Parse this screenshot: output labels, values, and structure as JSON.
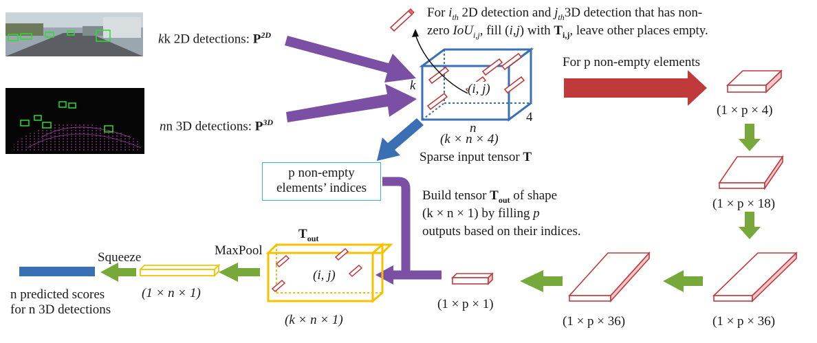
{
  "colors": {
    "purple": "#7b4fa3",
    "red": "#c0393b",
    "blue": "#3a6fb4",
    "green": "#76a93a",
    "yellow": "#f5c200",
    "cyan": "#3fb0cc",
    "pink": "#e06d74"
  },
  "inputs": {
    "camera_image": "camera-image-thumbnail",
    "lidar_image": "lidar-pointcloud-thumbnail",
    "k_2d_label": "k 2D detections: ",
    "p2d_symbol": "P",
    "p2d_sup": "2D",
    "n_3d_label": "n 3D detections: ",
    "p3d_symbol": "P",
    "p3d_sup": "3D"
  },
  "note": {
    "line1_a": "For ",
    "line1_ith": "i",
    "line1_th": "th",
    "line1_b": " 2D detection and ",
    "line1_jth": "j",
    "line1_c": "3D detection that has non-",
    "line2_a": "zero ",
    "line2_iou": "IoU",
    "line2_sub": "i,j",
    "line2_b": ", fill (",
    "line2_ij": "i,j",
    "line2_c": ") with ",
    "line2_T": "T",
    "line2_Tsub": "i,j",
    "line2_d": ", leave other places empty."
  },
  "sparse_tensor": {
    "k": "k",
    "n": "n",
    "four": "4",
    "ij": "(i, j)",
    "shape": "(k × n × 4)",
    "caption": "Sparse input tensor ",
    "caption_T": "T"
  },
  "mlp": {
    "for_p_label": "For p non-empty elements",
    "s1": "(1 × p × 4)",
    "s2": "(1 × p × 18)",
    "s3": "(1 × p × 36)",
    "s4": "(1 × p × 36)",
    "s5": "(1 × p × 1)"
  },
  "indices": {
    "label_line1": "p non-empty",
    "label_line2": "elements’ indices"
  },
  "build": {
    "l1_a": "Build tensor ",
    "l1_T": "T",
    "l1_Tsub": "out",
    "l1_b": " of shape",
    "l2_a": "(k × n × 1)  by  filling  ",
    "l2_p": "p",
    "l3": "outputs based on their indices."
  },
  "tout": {
    "title_T": "T",
    "title_sub": "out",
    "ij": "(i, j)",
    "shape": "(k × n × 1)"
  },
  "pool": {
    "maxpool": "MaxPool",
    "squeeze": "Squeeze",
    "shape": "(1 × n × 1)",
    "scores_l1": "n predicted scores",
    "scores_l2": "for n 3D detections"
  }
}
